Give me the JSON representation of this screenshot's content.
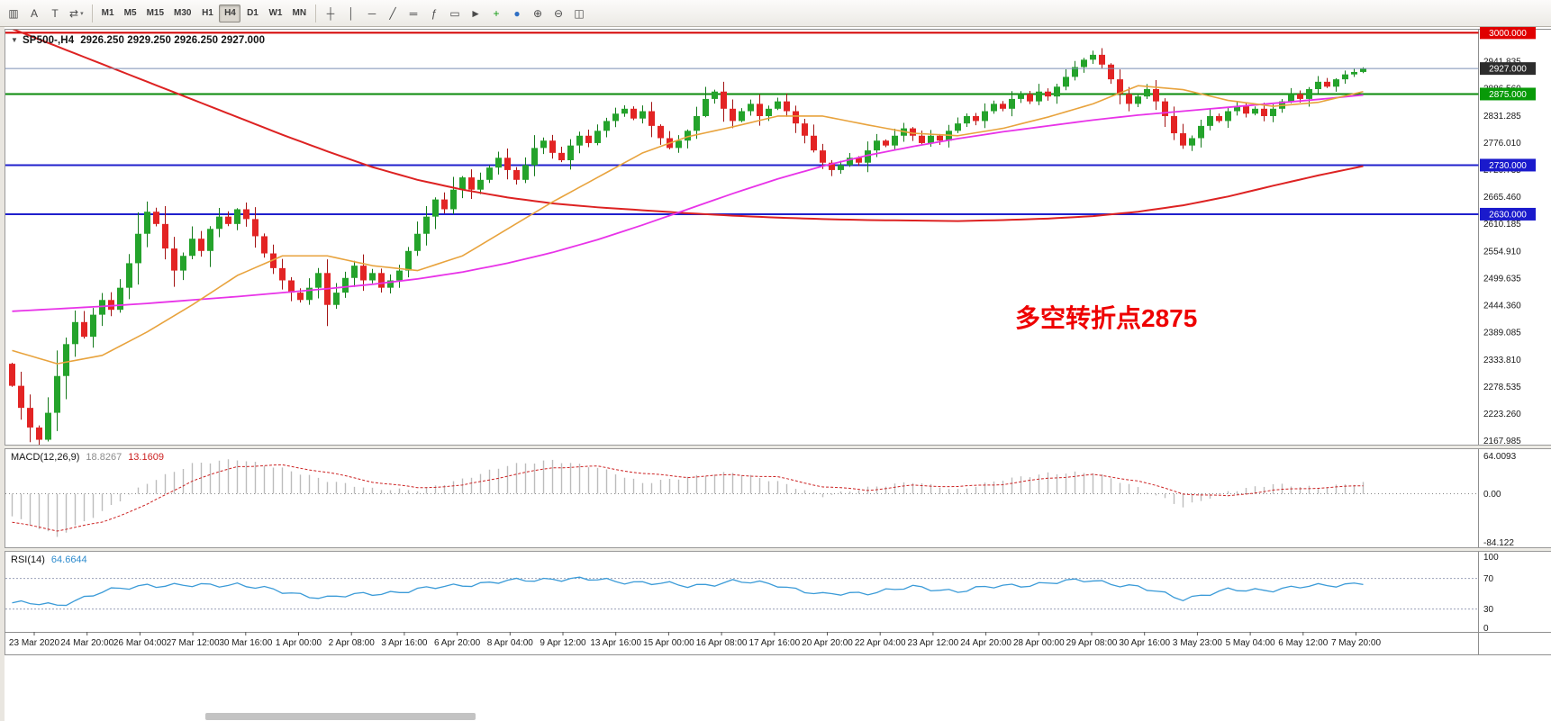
{
  "toolbar": {
    "left_icons": [
      {
        "name": "charts-menu-icon",
        "glyph": "▥"
      },
      {
        "name": "cursor-a-icon",
        "glyph": "A"
      },
      {
        "name": "text-tool-icon",
        "glyph": "T"
      },
      {
        "name": "objects-list-icon",
        "glyph": "⇄",
        "caret": "▾"
      }
    ],
    "timeframes": {
      "items": [
        "M1",
        "M5",
        "M15",
        "M30",
        "H1",
        "H4",
        "D1",
        "W1",
        "MN"
      ],
      "active": "H4"
    },
    "right_icons": [
      {
        "name": "crosshair-icon",
        "glyph": "┼"
      },
      {
        "name": "vertical-line-icon",
        "glyph": "│"
      },
      {
        "name": "horizontal-line-icon",
        "glyph": "─"
      },
      {
        "name": "trendline-icon",
        "glyph": "╱"
      },
      {
        "name": "equidistant-channel-icon",
        "glyph": "═"
      },
      {
        "name": "fibonacci-icon",
        "glyph": "ƒ"
      },
      {
        "name": "shapes-icon",
        "glyph": "▭"
      },
      {
        "name": "arrow-tool-icon",
        "glyph": "►"
      },
      {
        "name": "new-order-icon",
        "glyph": "+",
        "color": "#0f9a0f"
      },
      {
        "name": "refresh-icon",
        "glyph": "●",
        "color": "#2f6fc4"
      },
      {
        "name": "zoom-in-icon",
        "glyph": "⊕"
      },
      {
        "name": "zoom-out-icon",
        "glyph": "⊖"
      },
      {
        "name": "tile-windows-icon",
        "glyph": "◫"
      }
    ]
  },
  "chart": {
    "header": {
      "marker": "▼",
      "symbol_period": "SP500-,H4",
      "ohlc": "2926.250 2929.250 2926.250 2927.000"
    },
    "annotation": {
      "text": "多空转折点2875",
      "color": "#ee0000"
    },
    "price_axis": {
      "labels": [
        "2941.835",
        "2886.560",
        "2831.285",
        "2776.010",
        "2720.735",
        "2665.460",
        "2610.185",
        "2554.910",
        "2499.635",
        "2444.360",
        "2389.085",
        "2333.810",
        "2278.535",
        "2223.260",
        "2167.985"
      ]
    },
    "hlines": [
      {
        "price": 3000.0,
        "label": "3000.000",
        "badge_color": "#e00000",
        "line_color": "#d40000",
        "line_width": 2
      },
      {
        "price": 2875.0,
        "label": "2875.000",
        "badge_color": "#089a08",
        "line_color": "#0a8a0a",
        "line_width": 2
      },
      {
        "price": 2730.0,
        "label": "2730.000",
        "badge_color": "#1a1acc",
        "line_color": "#2020cc",
        "line_width": 2
      },
      {
        "price": 2630.0,
        "label": "2630.000",
        "badge_color": "#1a1acc",
        "line_color": "#2020cc",
        "line_width": 2
      }
    ],
    "current_price": {
      "price": 2927.0,
      "label": "2927.000",
      "badge_color": "#2d2d2d",
      "line_color": "#7a8fb5",
      "line_width": 1
    },
    "time_axis": {
      "labels": [
        "23 Mar 2020",
        "24 Mar 20:00",
        "26 Mar 04:00",
        "27 Mar 12:00",
        "30 Mar 16:00",
        "1 Apr 00:00",
        "2 Apr 08:00",
        "3 Apr 16:00",
        "6 Apr 20:00",
        "8 Apr 04:00",
        "9 Apr 12:00",
        "13 Apr 16:00",
        "15 Apr 00:00",
        "16 Apr 08:00",
        "17 Apr 16:00",
        "20 Apr 20:00",
        "22 Apr 04:00",
        "23 Apr 12:00",
        "24 Apr 20:00",
        "28 Apr 00:00",
        "29 Apr 08:00",
        "30 Apr 16:00",
        "3 May 23:00",
        "5 May 04:00",
        "6 May 12:00",
        "7 May 20:00"
      ]
    }
  },
  "macd": {
    "name": "MACD(12,26,9)",
    "main": "18.8267",
    "signal": "13.1609",
    "axis_labels": [
      "64.0093",
      "0.00",
      "-84.122"
    ]
  },
  "rsi": {
    "name": "RSI(14)",
    "value": "64.6644",
    "axis_labels": [
      "100",
      "70",
      "30",
      "0"
    ],
    "levels": [
      70,
      30
    ]
  },
  "chart_data": {
    "type": "candlestick",
    "symbol": "SP500-",
    "period": "H4",
    "ohlc_current": {
      "open": 2926.25,
      "high": 2929.25,
      "low": 2926.25,
      "close": 2927.0
    },
    "open_first": 2325,
    "closes": [
      2280,
      2235,
      2195,
      2170,
      2225,
      2300,
      2365,
      2410,
      2380,
      2425,
      2455,
      2435,
      2480,
      2530,
      2590,
      2635,
      2610,
      2560,
      2515,
      2545,
      2580,
      2555,
      2600,
      2625,
      2610,
      2640,
      2620,
      2585,
      2550,
      2520,
      2495,
      2470,
      2455,
      2480,
      2510,
      2445,
      2470,
      2500,
      2525,
      2495,
      2510,
      2480,
      2495,
      2515,
      2555,
      2590,
      2625,
      2660,
      2640,
      2680,
      2705,
      2680,
      2700,
      2725,
      2745,
      2720,
      2700,
      2730,
      2765,
      2780,
      2755,
      2740,
      2770,
      2790,
      2775,
      2800,
      2820,
      2835,
      2845,
      2825,
      2840,
      2810,
      2785,
      2765,
      2780,
      2800,
      2830,
      2865,
      2880,
      2845,
      2820,
      2840,
      2855,
      2830,
      2845,
      2860,
      2840,
      2815,
      2790,
      2760,
      2735,
      2720,
      2730,
      2745,
      2735,
      2760,
      2780,
      2770,
      2790,
      2805,
      2790,
      2775,
      2790,
      2780,
      2800,
      2815,
      2830,
      2820,
      2840,
      2855,
      2845,
      2865,
      2875,
      2860,
      2880,
      2870,
      2890,
      2910,
      2930,
      2945,
      2955,
      2935,
      2905,
      2875,
      2855,
      2870,
      2885,
      2860,
      2830,
      2795,
      2770,
      2785,
      2810,
      2830,
      2820,
      2840,
      2850,
      2835,
      2845,
      2830,
      2845,
      2860,
      2875,
      2865,
      2885,
      2900,
      2890,
      2905,
      2915,
      2920,
      2927
    ],
    "ma_samples_step": 5,
    "ma_slow_red": [
      3008,
      2972,
      2936,
      2900,
      2864,
      2828,
      2792,
      2758,
      2726,
      2700,
      2680,
      2664,
      2652,
      2644,
      2638,
      2632,
      2627,
      2623,
      2620,
      2618,
      2617,
      2616,
      2618,
      2621,
      2626,
      2635,
      2648,
      2666,
      2688,
      2709,
      2728
    ],
    "ma_mid_magenta": [
      2432,
      2437,
      2442,
      2448,
      2455,
      2462,
      2470,
      2478,
      2487,
      2498,
      2512,
      2530,
      2552,
      2578,
      2608,
      2640,
      2672,
      2702,
      2728,
      2750,
      2768,
      2784,
      2798,
      2810,
      2822,
      2832,
      2840,
      2848,
      2856,
      2864,
      2873
    ],
    "ma_fast_orange": [
      2352,
      2325,
      2342,
      2390,
      2445,
      2505,
      2545,
      2545,
      2525,
      2515,
      2545,
      2600,
      2655,
      2705,
      2755,
      2788,
      2808,
      2830,
      2830,
      2812,
      2795,
      2790,
      2805,
      2828,
      2855,
      2892,
      2884,
      2862,
      2850,
      2858,
      2880
    ],
    "macd_hist": [
      -38,
      -72,
      -30,
      18,
      50,
      58,
      42,
      22,
      8,
      6,
      24,
      48,
      56,
      44,
      18,
      28,
      36,
      20,
      -4,
      10,
      20,
      6,
      24,
      34,
      36,
      10,
      -22,
      4,
      16,
      10,
      18.8
    ],
    "macd_signal": [
      -48,
      -62,
      -48,
      -18,
      22,
      46,
      48,
      36,
      20,
      10,
      14,
      30,
      44,
      46,
      34,
      28,
      32,
      28,
      12,
      6,
      14,
      12,
      16,
      26,
      32,
      22,
      0,
      -4,
      6,
      10,
      13.2
    ],
    "rsi": [
      38,
      35,
      52,
      62,
      60,
      63,
      52,
      45,
      50,
      55,
      62,
      66,
      70,
      68,
      65,
      60,
      66,
      62,
      48,
      52,
      58,
      54,
      60,
      64,
      68,
      58,
      44,
      54,
      56,
      60,
      64.7
    ],
    "price_range": [
      2160,
      3008
    ],
    "macd_range": [
      -90,
      75
    ],
    "rsi_range": [
      0,
      105
    ],
    "colors": {
      "bull": "#24a32b",
      "bear": "#e32424",
      "bull_wick": "#157a1c",
      "bear_wick": "#a31414",
      "ma_fast": "#e8a33d",
      "ma_mid": "#e833e8",
      "ma_slow": "#dd2222",
      "macd_hist": "#bcbcbc",
      "macd_signal": "#cc2222",
      "rsi_line": "#3b9bd8"
    }
  }
}
